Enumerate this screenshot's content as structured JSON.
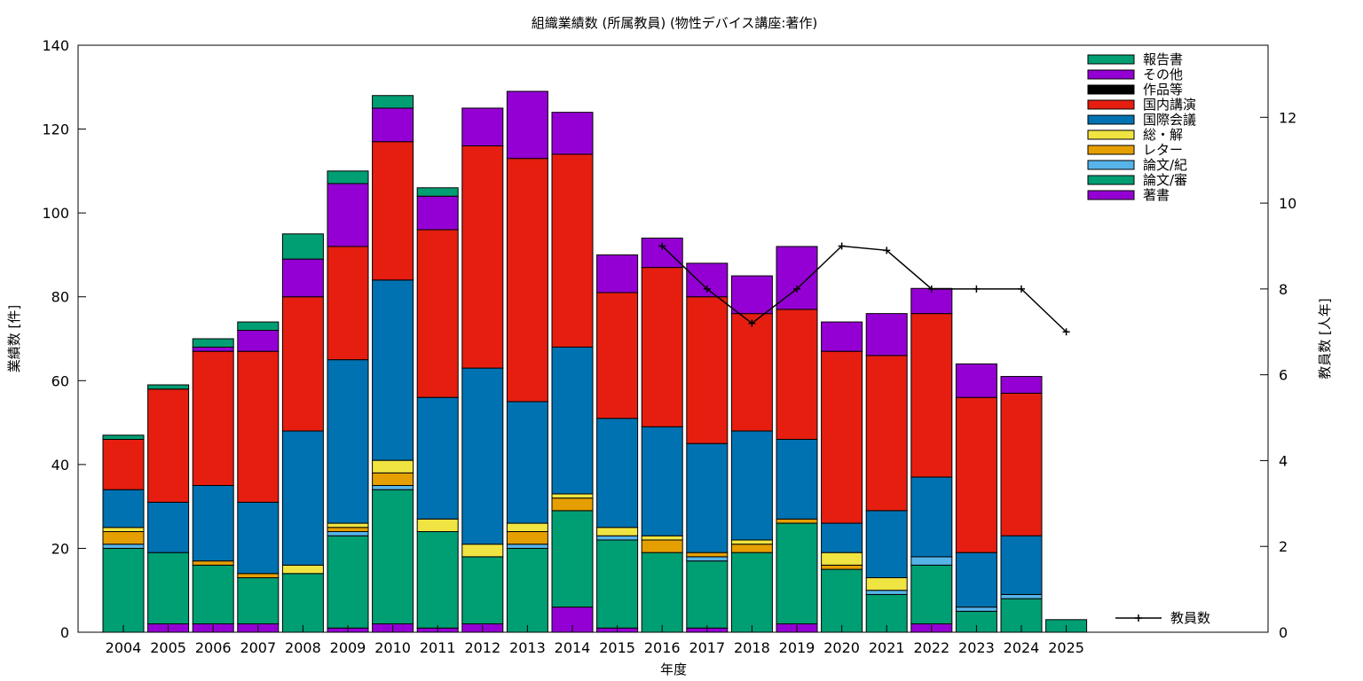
{
  "chart_data": {
    "type": "bar",
    "stacked": true,
    "title": "組織業績数 (所属教員) (物性デバイス講座:著作)",
    "xlabel": "年度",
    "ylabel": "業績数 [件]",
    "y2label": "教員数 [人年]",
    "ylim": [
      0,
      140
    ],
    "y2lim": [
      0,
      13.68
    ],
    "yticks": [
      0,
      20,
      40,
      60,
      80,
      100,
      120,
      140
    ],
    "y2ticks": [
      0,
      2,
      4,
      6,
      8,
      10,
      12
    ],
    "grid": false,
    "legend_position": "top-right",
    "categories": [
      "2004",
      "2005",
      "2006",
      "2007",
      "2008",
      "2009",
      "2010",
      "2011",
      "2012",
      "2013",
      "2014",
      "2015",
      "2016",
      "2017",
      "2018",
      "2019",
      "2020",
      "2021",
      "2022",
      "2023",
      "2024",
      "2025"
    ],
    "series": [
      {
        "name": "著書",
        "color": "#9400d3",
        "values": [
          0,
          2,
          2,
          2,
          0,
          1,
          2,
          1,
          2,
          0,
          6,
          1,
          0,
          1,
          0,
          2,
          0,
          0,
          2,
          0,
          0,
          0
        ]
      },
      {
        "name": "論文/審",
        "color": "#009e73",
        "values": [
          20,
          17,
          14,
          11,
          14,
          22,
          32,
          23,
          16,
          20,
          23,
          21,
          19,
          16,
          19,
          24,
          15,
          9,
          14,
          5,
          8,
          0
        ]
      },
      {
        "name": "論文/紀",
        "color": "#56b4e9",
        "values": [
          1,
          0,
          0,
          0,
          0,
          1,
          1,
          0,
          0,
          1,
          0,
          1,
          0,
          1,
          0,
          0,
          0,
          1,
          2,
          1,
          1,
          0
        ]
      },
      {
        "name": "レター",
        "color": "#e69f00",
        "values": [
          3,
          0,
          1,
          1,
          0,
          1,
          3,
          0,
          0,
          3,
          3,
          0,
          3,
          1,
          2,
          1,
          1,
          0,
          0,
          0,
          0,
          0
        ]
      },
      {
        "name": "総・解",
        "color": "#f0e442",
        "values": [
          1,
          0,
          0,
          0,
          2,
          1,
          3,
          3,
          3,
          2,
          1,
          2,
          1,
          0,
          1,
          0,
          3,
          3,
          0,
          0,
          0,
          0
        ]
      },
      {
        "name": "国際会議",
        "color": "#0072b2",
        "values": [
          9,
          12,
          18,
          17,
          32,
          39,
          43,
          29,
          42,
          29,
          35,
          26,
          26,
          26,
          26,
          19,
          7,
          16,
          19,
          13,
          14,
          0
        ]
      },
      {
        "name": "国内講演",
        "color": "#e51e10",
        "values": [
          12,
          27,
          32,
          36,
          32,
          27,
          33,
          40,
          53,
          58,
          46,
          30,
          38,
          35,
          28,
          31,
          41,
          37,
          39,
          37,
          34,
          0
        ]
      },
      {
        "name": "作品等",
        "color": "#000000",
        "values": [
          0,
          0,
          0,
          0,
          0,
          0,
          0,
          0,
          0,
          0,
          0,
          0,
          0,
          0,
          0,
          0,
          0,
          0,
          0,
          0,
          0,
          0
        ]
      },
      {
        "name": "その他",
        "color": "#9400d3",
        "values": [
          0,
          0,
          1,
          5,
          9,
          15,
          8,
          8,
          9,
          16,
          10,
          9,
          7,
          8,
          9,
          15,
          7,
          10,
          6,
          8,
          4,
          0
        ]
      },
      {
        "name": "報告書",
        "color": "#009e73",
        "values": [
          1,
          1,
          2,
          2,
          6,
          3,
          3,
          2,
          0,
          0,
          0,
          0,
          0,
          0,
          0,
          0,
          0,
          0,
          0,
          0,
          0,
          3
        ]
      }
    ],
    "legend_order": [
      "報告書",
      "その他",
      "作品等",
      "国内講演",
      "国際会議",
      "総・解",
      "レター",
      "論文/紀",
      "論文/審",
      "著書"
    ],
    "line_series": {
      "name": "教員数",
      "axis": "y2",
      "color": "#000000",
      "x": [
        "2016",
        "2017",
        "2018",
        "2019",
        "2020",
        "2021",
        "2022",
        "2023",
        "2024",
        "2025"
      ],
      "values": [
        9.0,
        8.0,
        7.2,
        8.0,
        9.0,
        8.9,
        8.0,
        8.0,
        8.0,
        7.0
      ]
    }
  }
}
